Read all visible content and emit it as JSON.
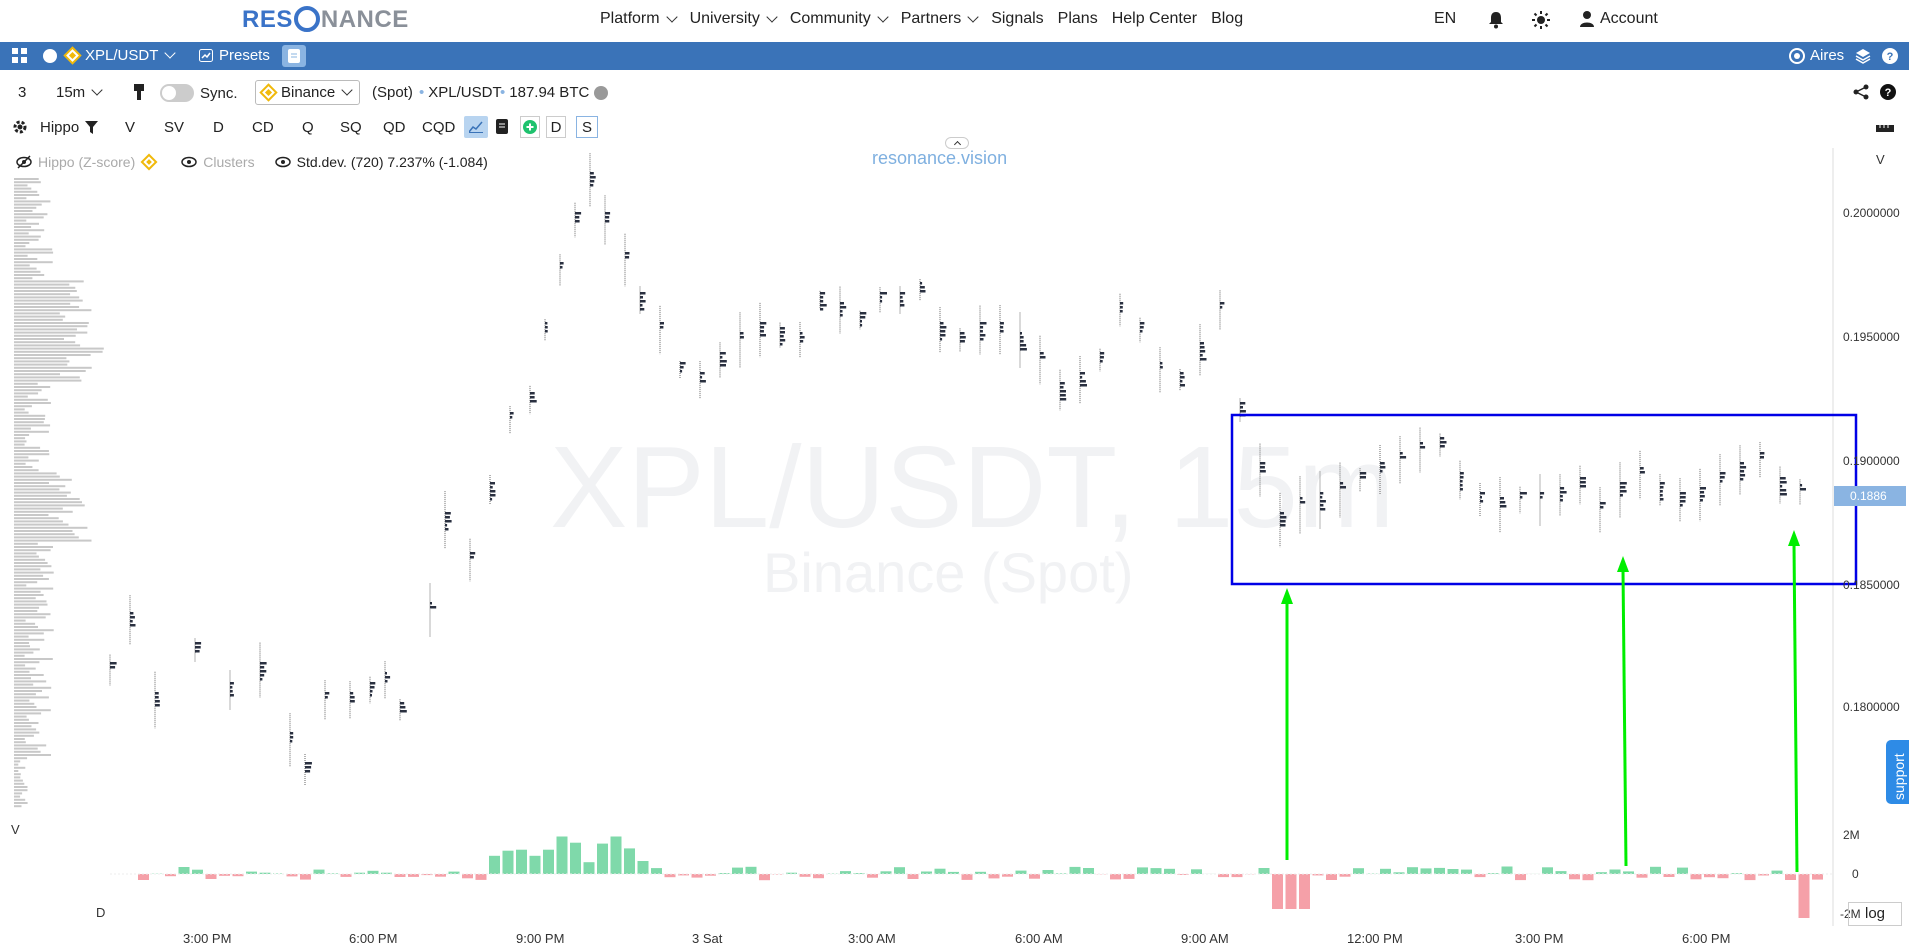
{
  "topnav": {
    "logo_a": "RES",
    "logo_b": "NANCE",
    "items": [
      "Platform",
      "University",
      "Community",
      "Partners",
      "Signals",
      "Plans",
      "Help Center",
      "Blog"
    ],
    "lang": "EN",
    "account": "Account"
  },
  "bluebar": {
    "symbol": "XPL/USDT",
    "presets": "Presets",
    "user": "Aires"
  },
  "toolbar": {
    "layout_count": "3",
    "timeframe": "15m",
    "sync": "Sync.",
    "exchange": "Binance",
    "market": "(Spot)",
    "pair": "XPL/USDT",
    "volume": "187.94 BTC"
  },
  "indicators": {
    "profile": "Hippo",
    "buttons": [
      "V",
      "SV",
      "D",
      "CD",
      "Q",
      "SQ",
      "QD",
      "CQD"
    ],
    "d_label": "D",
    "s_label": "S"
  },
  "legend": {
    "hippo": "Hippo (Z-score)",
    "clusters": "Clusters",
    "stddev": "Std.dev. (720) 7.237% (-1.084)"
  },
  "watermark": {
    "title": "XPL/USDT, 15m",
    "subtitle": "Binance (Spot)",
    "brand": "resonance.vision"
  },
  "axis": {
    "price_ticks": [
      "0.2000000",
      "0.1950000",
      "0.1900000",
      "0.1850000",
      "0.1800000"
    ],
    "current_price": "0.1886",
    "volume_ticks": [
      "2M",
      "0",
      "-2M"
    ],
    "time_ticks": [
      "3:00 PM",
      "6:00 PM",
      "9:00 PM",
      "3 Sat",
      "3:00 AM",
      "6:00 AM",
      "9:00 AM",
      "12:00 PM",
      "3:00 PM",
      "6:00 PM"
    ],
    "top_label": "V",
    "left_label_v": "V",
    "left_label_d": "D",
    "log": "log"
  },
  "support": "support",
  "colors": {
    "accent": "#3a73b8",
    "box": "#0000e6",
    "arrow": "#00ee00",
    "up": "#7fd9aa",
    "down": "#f5a0a8"
  }
}
